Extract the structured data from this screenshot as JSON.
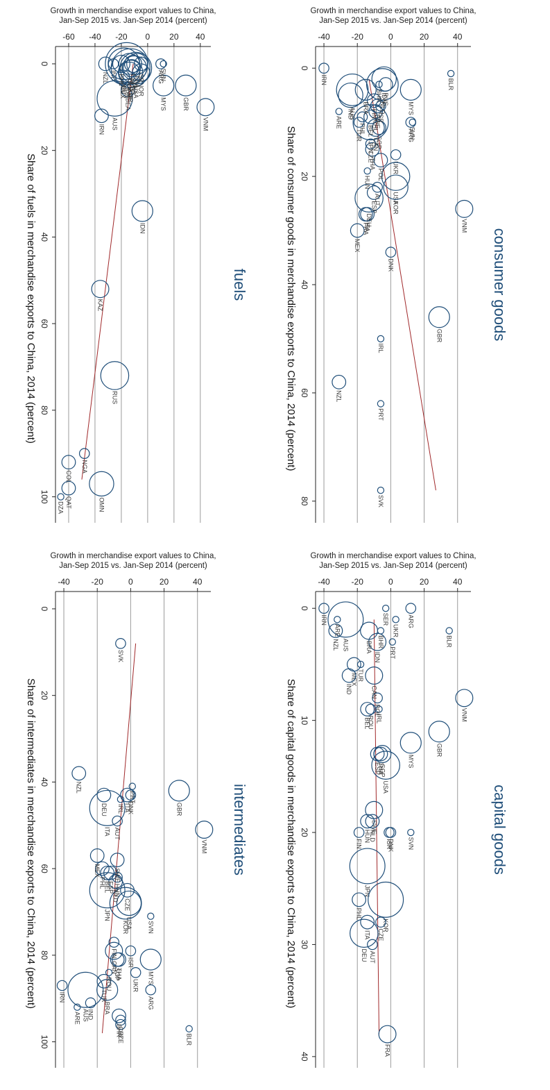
{
  "chart_data": [
    {
      "type": "scatter",
      "title": "consumer goods",
      "xlabel": "Share of consumer goods in merchandise exports to China, 2014 (percent)",
      "ylabel": [
        "Growth in merchandise export values to China,",
        "Jan-Sep 2015 vs. Jan-Sep 2014 (percent)"
      ],
      "xlim": [
        -4,
        84
      ],
      "ylim": [
        -45,
        48
      ],
      "xticks": [
        0,
        20,
        40,
        60,
        80
      ],
      "yticks": [
        -40,
        -20,
        0,
        20,
        40
      ],
      "fit_line": {
        "x": [
          2,
          78
        ],
        "y": [
          -13,
          27
        ]
      },
      "points": [
        {
          "label": "BLR",
          "x": 1,
          "y": 36,
          "size": 1
        },
        {
          "label": "VNM",
          "x": 26,
          "y": 44,
          "size": 4
        },
        {
          "label": "GBR",
          "x": 46,
          "y": 29,
          "size": 5
        },
        {
          "label": "MYS",
          "x": 4,
          "y": 12,
          "size": 5
        },
        {
          "label": "SVN",
          "x": 10,
          "y": 13,
          "size": 1
        },
        {
          "label": "ARG",
          "x": 10,
          "y": 12,
          "size": 2
        },
        {
          "label": "UKR",
          "x": 16,
          "y": 3,
          "size": 2
        },
        {
          "label": "DNK",
          "x": 34,
          "y": 0,
          "size": 2
        },
        {
          "label": "IRL",
          "x": 50,
          "y": -6,
          "size": 1
        },
        {
          "label": "PRT",
          "x": 62,
          "y": -6,
          "size": 1
        },
        {
          "label": "SVK",
          "x": 78,
          "y": -6,
          "size": 1
        },
        {
          "label": "NZL",
          "x": 58,
          "y": -31,
          "size": 3
        },
        {
          "label": "MEX",
          "x": 30,
          "y": -20,
          "size": 3
        },
        {
          "label": "ITA",
          "x": 27,
          "y": -14,
          "size": 3
        },
        {
          "label": "FRA",
          "x": 27,
          "y": -15,
          "size": 3
        },
        {
          "label": "DEU",
          "x": 24,
          "y": -13,
          "size": 7
        },
        {
          "label": "ESP",
          "x": 23,
          "y": -10,
          "size": 3
        },
        {
          "label": "AUT",
          "x": 22,
          "y": -8,
          "size": 2
        },
        {
          "label": "HUN",
          "x": 19,
          "y": -14,
          "size": 1
        },
        {
          "label": "USA",
          "x": 20,
          "y": 3,
          "size": 7
        },
        {
          "label": "KOR",
          "x": 22,
          "y": 3,
          "size": 6
        },
        {
          "label": "POL",
          "x": 17,
          "y": -6,
          "size": 3
        },
        {
          "label": "THA",
          "x": 15,
          "y": -11,
          "size": 3
        },
        {
          "label": "CZE",
          "x": 14,
          "y": -12,
          "size": 2
        },
        {
          "label": "SGP",
          "x": 11,
          "y": -7,
          "size": 3
        },
        {
          "label": "JPN",
          "x": 10,
          "y": -12,
          "size": 9
        },
        {
          "label": "CAN",
          "x": 11,
          "y": -9,
          "size": 4
        },
        {
          "label": "BEL",
          "x": 9,
          "y": -12,
          "size": 3
        },
        {
          "label": "PHL",
          "x": 9,
          "y": -17,
          "size": 2
        },
        {
          "label": "TUR",
          "x": 10,
          "y": -19,
          "size": 2
        },
        {
          "label": "CHL",
          "x": 8,
          "y": -9,
          "size": 3
        },
        {
          "label": "FIN",
          "x": 6,
          "y": -10,
          "size": 3
        },
        {
          "label": "SWE",
          "x": 7,
          "y": -8,
          "size": 3
        },
        {
          "label": "ISR",
          "x": 7,
          "y": -6,
          "size": 2
        },
        {
          "label": "BRA",
          "x": 4,
          "y": -15,
          "size": 5
        },
        {
          "label": "IND",
          "x": 5,
          "y": -24,
          "size": 6
        },
        {
          "label": "AUS",
          "x": 4,
          "y": -23,
          "size": 8
        },
        {
          "label": "ARE",
          "x": 8,
          "y": -31,
          "size": 1
        },
        {
          "label": "IRN",
          "x": 0,
          "y": -40,
          "size": 2
        },
        {
          "label": "NLD",
          "x": 3,
          "y": -5,
          "size": 8
        },
        {
          "label": "RUS",
          "x": 3,
          "y": -3,
          "size": 3
        },
        {
          "label": "BHR",
          "x": 3,
          "y": -7,
          "size": 1
        },
        {
          "label": "IDN",
          "x": 2,
          "y": -4,
          "size": 6
        }
      ]
    },
    {
      "type": "scatter",
      "title": "capital goods",
      "xlabel": "Share of capital goods in merchandise exports to China, 2014 (percent)",
      "ylabel": [
        "Growth in merchandise export values to China,",
        "Jan-Sep 2015 vs. Jan-Sep 2014 (percent)"
      ],
      "xlim": [
        -1.5,
        41
      ],
      "ylim": [
        -45,
        48
      ],
      "xticks": [
        0,
        10,
        20,
        30,
        40
      ],
      "yticks": [
        -40,
        -20,
        0,
        20,
        40
      ],
      "fit_line": {
        "x": [
          1,
          38
        ],
        "y": [
          -10,
          -7
        ]
      },
      "points": [
        {
          "label": "BLR",
          "x": 2,
          "y": 35,
          "size": 1
        },
        {
          "label": "PRT",
          "x": 3,
          "y": 1,
          "size": 1
        },
        {
          "label": "ARG",
          "x": 0,
          "y": 12,
          "size": 2
        },
        {
          "label": "UKR",
          "x": 1,
          "y": 3,
          "size": 1
        },
        {
          "label": "SER",
          "x": 0,
          "y": -3,
          "size": 1
        },
        {
          "label": "VNM",
          "x": 8,
          "y": 44,
          "size": 4
        },
        {
          "label": "GBR",
          "x": 11,
          "y": 29,
          "size": 5
        },
        {
          "label": "MYS",
          "x": 12,
          "y": 12,
          "size": 5
        },
        {
          "label": "SVN",
          "x": 20,
          "y": 12,
          "size": 1
        },
        {
          "label": "DNK",
          "x": 20,
          "y": 0,
          "size": 2
        },
        {
          "label": "ISR",
          "x": 20,
          "y": -1,
          "size": 2
        },
        {
          "label": "SWE",
          "x": 18,
          "y": -10,
          "size": 4
        },
        {
          "label": "NLD",
          "x": 19,
          "y": -11,
          "size": 3
        },
        {
          "label": "HUN",
          "x": 19,
          "y": -14,
          "size": 3
        },
        {
          "label": "FIN",
          "x": 20,
          "y": -19,
          "size": 2
        },
        {
          "label": "JPN",
          "x": 23,
          "y": -14,
          "size": 9
        },
        {
          "label": "KOR",
          "x": 26,
          "y": -3,
          "size": 9
        },
        {
          "label": "CZE",
          "x": 28,
          "y": -6,
          "size": 2
        },
        {
          "label": "AUT",
          "x": 30,
          "y": -11,
          "size": 2
        },
        {
          "label": "ITA",
          "x": 28,
          "y": -14,
          "size": 3
        },
        {
          "label": "DEU",
          "x": 29,
          "y": -16,
          "size": 7
        },
        {
          "label": "PHL",
          "x": 26,
          "y": -19,
          "size": 3
        },
        {
          "label": "FRA",
          "x": 38,
          "y": -2,
          "size": 4
        },
        {
          "label": "USA",
          "x": 14,
          "y": -3,
          "size": 7
        },
        {
          "label": "SGP",
          "x": 13,
          "y": -5,
          "size": 4
        },
        {
          "label": "THA",
          "x": 13,
          "y": -6,
          "size": 3
        },
        {
          "label": "ESP",
          "x": 13,
          "y": -8,
          "size": 3
        },
        {
          "label": "IRL",
          "x": 9,
          "y": -7,
          "size": 1
        },
        {
          "label": "POL",
          "x": 8,
          "y": -8,
          "size": 2
        },
        {
          "label": "ROU",
          "x": 9,
          "y": -12,
          "size": 2
        },
        {
          "label": "BEL",
          "x": 9,
          "y": -14,
          "size": 3
        },
        {
          "label": "CAN",
          "x": 6,
          "y": -10,
          "size": 4
        },
        {
          "label": "TUR",
          "x": 5,
          "y": -18,
          "size": 1
        },
        {
          "label": "MEX",
          "x": 5,
          "y": -22,
          "size": 3
        },
        {
          "label": "IND",
          "x": 6,
          "y": -25,
          "size": 3
        },
        {
          "label": "IDN",
          "x": 3,
          "y": -8,
          "size": 4
        },
        {
          "label": "BHR",
          "x": 2,
          "y": -6,
          "size": 1
        },
        {
          "label": "BRA",
          "x": 2,
          "y": -13,
          "size": 4
        },
        {
          "label": "AUS",
          "x": 1,
          "y": -27,
          "size": 9
        },
        {
          "label": "ARE",
          "x": 1,
          "y": -32,
          "size": 1
        },
        {
          "label": "NZL",
          "x": 2,
          "y": -33,
          "size": 3
        },
        {
          "label": "IRN",
          "x": 0,
          "y": -40,
          "size": 2
        }
      ]
    },
    {
      "type": "scatter",
      "title": "fuels",
      "xlabel": "Share of fuels in merchandise exports to China, 2014 (percent)",
      "ylabel": [
        "Growth in merchandise export values to China,",
        "Jan-Sep 2015 vs. Jan-Sep 2014 (percent)"
      ],
      "xlim": [
        -4,
        106
      ],
      "ylim": [
        -70,
        48
      ],
      "xticks": [
        0,
        20,
        40,
        60,
        80,
        100
      ],
      "yticks": [
        -60,
        -40,
        -20,
        0,
        20,
        40
      ],
      "fit_line": {
        "x": [
          0,
          96
        ],
        "y": [
          -11,
          -50
        ]
      },
      "points": [
        {
          "label": "VNM",
          "x": 10,
          "y": 44,
          "size": 4
        },
        {
          "label": "GBR",
          "x": 5,
          "y": 29,
          "size": 5
        },
        {
          "label": "MYS",
          "x": 5,
          "y": 12,
          "size": 5
        },
        {
          "label": "SVN",
          "x": 0,
          "y": 12,
          "size": 1
        },
        {
          "label": "NOR",
          "x": 2,
          "y": -5,
          "size": 4
        },
        {
          "label": "IDN",
          "x": 34,
          "y": -4,
          "size": 5
        },
        {
          "label": "BEA",
          "x": 6,
          "y": -15,
          "size": 3
        },
        {
          "label": "MEX",
          "x": 3,
          "y": -19,
          "size": 3
        },
        {
          "label": "AUS",
          "x": 8,
          "y": -25,
          "size": 9
        },
        {
          "label": "IRN",
          "x": 12,
          "y": -35,
          "size": 3
        },
        {
          "label": "NZL",
          "x": 0,
          "y": -32,
          "size": 3
        },
        {
          "label": "IND",
          "x": 0,
          "y": -26,
          "size": 2
        },
        {
          "label": "KAZ",
          "x": 52,
          "y": -36,
          "size": 4
        },
        {
          "label": "RUS",
          "x": 72,
          "y": -25,
          "size": 7
        },
        {
          "label": "NGA",
          "x": 90,
          "y": -48,
          "size": 2
        },
        {
          "label": "COL",
          "x": 92,
          "y": -60,
          "size": 3
        },
        {
          "label": "OMN",
          "x": 97,
          "y": -35,
          "size": 6
        },
        {
          "label": "QAT",
          "x": 98,
          "y": -60,
          "size": 3
        },
        {
          "label": "DZA",
          "x": 100,
          "y": -66,
          "size": 1
        },
        {
          "label": "JPN",
          "x": 0,
          "y": -16,
          "size": 11
        },
        {
          "label": "KOR",
          "x": 1,
          "y": -13,
          "size": 10
        },
        {
          "label": "USA",
          "x": 1,
          "y": -9,
          "size": 8
        },
        {
          "label": "DEU",
          "x": 0,
          "y": -18,
          "size": 8
        },
        {
          "label": "THA",
          "x": 1,
          "y": -10,
          "size": 6
        },
        {
          "label": "SGP",
          "x": 2,
          "y": -13,
          "size": 6
        },
        {
          "label": "CAN",
          "x": 2,
          "y": -14,
          "size": 5
        },
        {
          "label": "ISR",
          "x": 0,
          "y": -5,
          "size": 3
        },
        {
          "label": "ARG",
          "x": 0,
          "y": 10,
          "size": 2
        },
        {
          "label": "FRA",
          "x": 0,
          "y": -8,
          "size": 5
        },
        {
          "label": "PHL",
          "x": 0,
          "y": -20,
          "size": 4
        },
        {
          "label": "ESP",
          "x": 0,
          "y": -11,
          "size": 4
        },
        {
          "label": "ITA",
          "x": 0,
          "y": -14,
          "size": 5
        },
        {
          "label": "NLD",
          "x": 1,
          "y": -12,
          "size": 4
        }
      ]
    },
    {
      "type": "scatter",
      "title": "intermediates",
      "xlabel": "Share of intermediates in merchandise exports to China, 2014 (percent)",
      "ylabel": [
        "Growth in merchandise export values to China,",
        "Jan-Sep 2015 vs. Jan-Sep 2014 (percent)"
      ],
      "xlim": [
        -4,
        106
      ],
      "ylim": [
        -45,
        48
      ],
      "xticks": [
        0,
        20,
        40,
        60,
        80,
        100
      ],
      "yticks": [
        -40,
        -20,
        0,
        20,
        40
      ],
      "fit_line": {
        "x": [
          8,
          98
        ],
        "y": [
          3,
          -17
        ]
      },
      "points": [
        {
          "label": "BLR",
          "x": 97,
          "y": 35,
          "size": 1
        },
        {
          "label": "VNM",
          "x": 51,
          "y": 44,
          "size": 4
        },
        {
          "label": "GBR",
          "x": 42,
          "y": 29,
          "size": 5
        },
        {
          "label": "SVK",
          "x": 8,
          "y": -6,
          "size": 2
        },
        {
          "label": "SVN",
          "x": 71,
          "y": 12,
          "size": 1
        },
        {
          "label": "PRT",
          "x": 41,
          "y": 1,
          "size": 1
        },
        {
          "label": "DNK",
          "x": 43,
          "y": 0,
          "size": 2
        },
        {
          "label": "ITA",
          "x": 43,
          "y": -2,
          "size": 3
        },
        {
          "label": "IRL",
          "x": 44,
          "y": -6,
          "size": 1
        },
        {
          "label": "ITA",
          "x": 46,
          "y": -14,
          "size": 9
        },
        {
          "label": "DEU",
          "x": 43,
          "y": -16,
          "size": 3
        },
        {
          "label": "NZL",
          "x": 38,
          "y": -31,
          "size": 3
        },
        {
          "label": "MYS",
          "x": 81,
          "y": 12,
          "size": 5
        },
        {
          "label": "ARG",
          "x": 88,
          "y": 12,
          "size": 2
        },
        {
          "label": "UKR",
          "x": 84,
          "y": 3,
          "size": 2
        },
        {
          "label": "CZE",
          "x": 96,
          "y": -6,
          "size": 2
        },
        {
          "label": "CHL",
          "x": 95,
          "y": -6,
          "size": 2
        },
        {
          "label": "BHR",
          "x": 94,
          "y": -7,
          "size": 3
        },
        {
          "label": "ARE",
          "x": 92,
          "y": -32,
          "size": 1
        },
        {
          "label": "AUS",
          "x": 88,
          "y": -27,
          "size": 9
        },
        {
          "label": "IND",
          "x": 91,
          "y": -24,
          "size": 2
        },
        {
          "label": "IRN",
          "x": 87,
          "y": -41,
          "size": 2
        },
        {
          "label": "TUR",
          "x": 86,
          "y": -16,
          "size": 3
        },
        {
          "label": "BRA",
          "x": 88,
          "y": -14,
          "size": 5
        },
        {
          "label": "ROU",
          "x": 84,
          "y": -13,
          "size": 1
        },
        {
          "label": "ISR",
          "x": 79,
          "y": 0,
          "size": 2
        },
        {
          "label": "THA",
          "x": 81,
          "y": -7,
          "size": 3
        },
        {
          "label": "SGP",
          "x": 81,
          "y": -8,
          "size": 3
        },
        {
          "label": "CAN",
          "x": 79,
          "y": -10,
          "size": 4
        },
        {
          "label": "FIN",
          "x": 77,
          "y": -10,
          "size": 2
        },
        {
          "label": "USA",
          "x": 68,
          "y": -1,
          "size": 6
        },
        {
          "label": "KOR",
          "x": 68,
          "y": -3,
          "size": 8
        },
        {
          "label": "CZE",
          "x": 65,
          "y": -2,
          "size": 3
        },
        {
          "label": "JPN",
          "x": 65,
          "y": -14,
          "size": 9
        },
        {
          "label": "HUN",
          "x": 62,
          "y": -8,
          "size": 2
        },
        {
          "label": "NLD",
          "x": 63,
          "y": -9,
          "size": 3
        },
        {
          "label": "ESP",
          "x": 61,
          "y": -12,
          "size": 3
        },
        {
          "label": "BEL",
          "x": 61,
          "y": -14,
          "size": 3
        },
        {
          "label": "PHL",
          "x": 60,
          "y": -17,
          "size": 3
        },
        {
          "label": "SWE",
          "x": 58,
          "y": -8,
          "size": 3
        },
        {
          "label": "MEX",
          "x": 57,
          "y": -20,
          "size": 3
        },
        {
          "label": "AUT",
          "x": 49,
          "y": -8,
          "size": 2
        }
      ]
    }
  ]
}
